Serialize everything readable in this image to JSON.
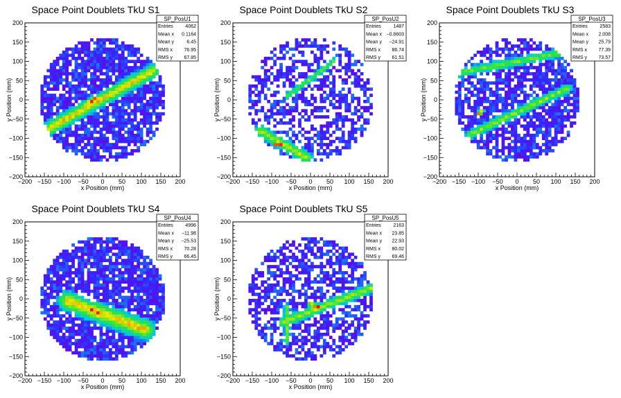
{
  "chart_data": [
    {
      "type": "heatmap",
      "title": "Space Point Doublets TkU S1",
      "xlabel": "x Position (mm)",
      "ylabel": "y Position (mm)",
      "xlim": [
        -200,
        200
      ],
      "ylim": [
        -200,
        200
      ],
      "xticks": [
        "−200",
        "−150",
        "−100",
        "−50",
        "0",
        "50",
        "100",
        "150",
        "200"
      ],
      "yticks": [
        "200",
        "150",
        "100",
        "50",
        "0",
        "−50",
        "−100",
        "−150",
        "−200"
      ],
      "stats": {
        "name": "SP_PosU1",
        "rows": [
          [
            "Entries",
            "4062"
          ],
          [
            "Mean x",
            "0.1164"
          ],
          [
            "Mean y",
            "6.45"
          ],
          [
            "RMS x",
            "76.95"
          ],
          [
            "RMS y",
            "67.85"
          ]
        ]
      },
      "occupancy": 0.82,
      "seed": 11,
      "bands": [
        {
          "x1": -140,
          "y1": -75,
          "x2": 130,
          "y2": 75,
          "width": 22,
          "intensity": 0.7
        },
        {
          "x1": -40,
          "y1": -10,
          "x2": -15,
          "y2": 5,
          "width": 10,
          "intensity": 1.0
        }
      ]
    },
    {
      "type": "heatmap",
      "title": "Space Point Doublets TkU S2",
      "xlabel": "x Position (mm)",
      "ylabel": "y Position (mm)",
      "xlim": [
        -200,
        200
      ],
      "ylim": [
        -200,
        200
      ],
      "xticks": [
        "−200",
        "−150",
        "−100",
        "−50",
        "0",
        "50",
        "100",
        "150",
        "200"
      ],
      "yticks": [
        "200",
        "150",
        "100",
        "50",
        "0",
        "−50",
        "−100",
        "−150",
        "−200"
      ],
      "stats": {
        "name": "SP_PosU2",
        "rows": [
          [
            "Entries",
            "1487"
          ],
          [
            "Mean x",
            "−0.8603"
          ],
          [
            "Mean y",
            "−24.91"
          ],
          [
            "RMS x",
            "86.74"
          ],
          [
            "RMS y",
            "61.51"
          ]
        ]
      },
      "occupancy": 0.52,
      "seed": 23,
      "bands": [
        {
          "x1": -130,
          "y1": -80,
          "x2": -10,
          "y2": -150,
          "width": 18,
          "intensity": 0.6
        },
        {
          "x1": -90,
          "y1": -115,
          "x2": -75,
          "y2": -115,
          "width": 10,
          "intensity": 1.0
        },
        {
          "x1": -60,
          "y1": 10,
          "x2": 60,
          "y2": 100,
          "width": 10,
          "intensity": 0.45
        }
      ]
    },
    {
      "type": "heatmap",
      "title": "Space Point Doublets TkU S3",
      "xlabel": "x Position (mm)",
      "ylabel": "y Position (mm)",
      "xlim": [
        -200,
        200
      ],
      "ylim": [
        -200,
        200
      ],
      "xticks": [
        "−200",
        "−150",
        "−100",
        "−50",
        "0",
        "50",
        "100",
        "150",
        "200"
      ],
      "yticks": [
        "200",
        "150",
        "100",
        "50",
        "0",
        "−50",
        "−100",
        "−150",
        "−200"
      ],
      "stats": {
        "name": "SP_PosU3",
        "rows": [
          [
            "Entries",
            "2583"
          ],
          [
            "Mean x",
            "2.008"
          ],
          [
            "Mean y",
            "25.79"
          ],
          [
            "RMS x",
            "77.39"
          ],
          [
            "RMS y",
            "73.57"
          ]
        ]
      },
      "occupancy": 0.72,
      "seed": 37,
      "bands": [
        {
          "x1": -150,
          "y1": 70,
          "x2": 150,
          "y2": 130,
          "width": 14,
          "intensity": 0.5
        },
        {
          "x1": -120,
          "y1": -90,
          "x2": 130,
          "y2": 30,
          "width": 14,
          "intensity": 0.55
        },
        {
          "x1": -100,
          "y1": -35,
          "x2": -90,
          "y2": -30,
          "width": 8,
          "intensity": 1.0
        }
      ]
    },
    {
      "type": "heatmap",
      "title": "Space Point Doublets TkU S4",
      "xlabel": "x Position (mm)",
      "ylabel": "y Position (mm)",
      "xlim": [
        -200,
        200
      ],
      "ylim": [
        -200,
        200
      ],
      "xticks": [
        "−200",
        "−150",
        "−100",
        "−50",
        "0",
        "50",
        "100",
        "150",
        "200"
      ],
      "yticks": [
        "200",
        "150",
        "100",
        "50",
        "0",
        "−50",
        "−100",
        "−150",
        "−200"
      ],
      "stats": {
        "name": "SP_PosU4",
        "rows": [
          [
            "Entries",
            "4996"
          ],
          [
            "Mean x",
            "−11.98"
          ],
          [
            "Mean y",
            "−25.53"
          ],
          [
            "RMS x",
            "70.28"
          ],
          [
            "RMS y",
            "66.45"
          ]
        ]
      },
      "occupancy": 0.85,
      "seed": 41,
      "bands": [
        {
          "x1": -90,
          "y1": -5,
          "x2": 110,
          "y2": -80,
          "width": 30,
          "intensity": 0.75
        },
        {
          "x1": -30,
          "y1": -25,
          "x2": -10,
          "y2": -40,
          "width": 12,
          "intensity": 1.0
        }
      ]
    },
    {
      "type": "heatmap",
      "title": "Space Point Doublets TkU S5",
      "xlabel": "x Position (mm)",
      "ylabel": "y Position (mm)",
      "xlim": [
        -200,
        200
      ],
      "ylim": [
        -200,
        200
      ],
      "xticks": [
        "−200",
        "−150",
        "−100",
        "−50",
        "0",
        "50",
        "100",
        "150",
        "200"
      ],
      "yticks": [
        "200",
        "150",
        "100",
        "50",
        "0",
        "−50",
        "−100",
        "−150",
        "−200"
      ],
      "stats": {
        "name": "SP_PosU5",
        "rows": [
          [
            "Entries",
            "2163"
          ],
          [
            "Mean x",
            "23.85"
          ],
          [
            "Mean y",
            "22.93"
          ],
          [
            "RMS x",
            "80.02"
          ],
          [
            "RMS y",
            "69.46"
          ]
        ]
      },
      "occupancy": 0.62,
      "seed": 53,
      "bands": [
        {
          "x1": -70,
          "y1": -60,
          "x2": 160,
          "y2": 30,
          "width": 16,
          "intensity": 0.6
        },
        {
          "x1": 0,
          "y1": -15,
          "x2": 20,
          "y2": -20,
          "width": 8,
          "intensity": 1.0
        },
        {
          "x1": -60,
          "y1": -20,
          "x2": -60,
          "y2": -110,
          "width": 10,
          "intensity": 0.45
        }
      ]
    }
  ]
}
